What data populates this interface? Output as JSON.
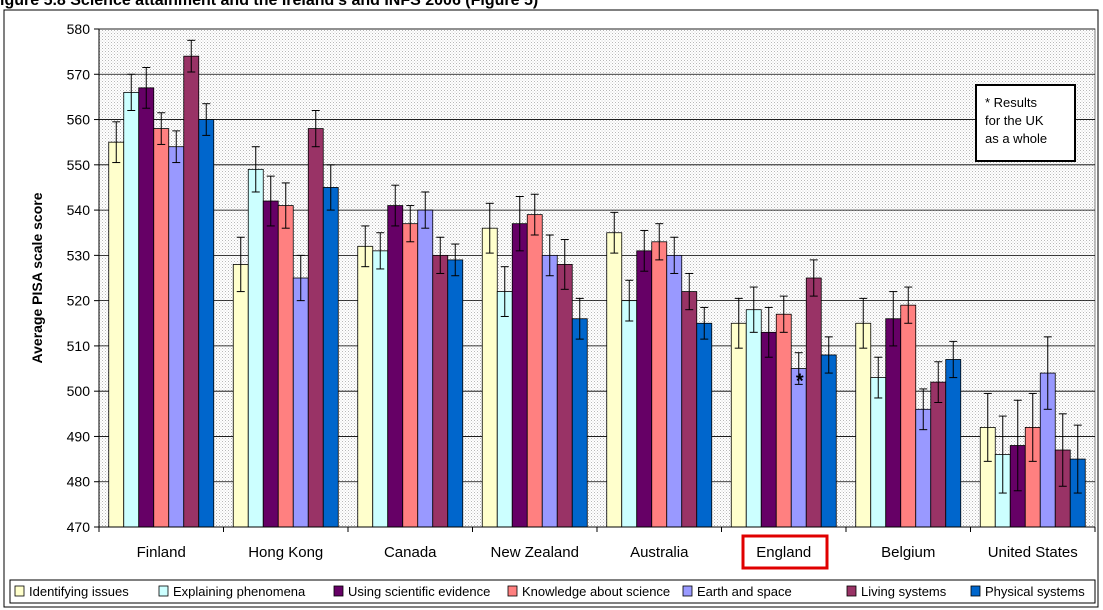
{
  "figure_title": "igure 5.8 Science attainment and the Ireland's and INFS 2006 (Figure 5)",
  "chart_data": {
    "type": "bar",
    "ylabel": "Average PISA scale score",
    "xlabel": "",
    "ylim": [
      470,
      580
    ],
    "yticks": [
      470,
      480,
      490,
      500,
      510,
      520,
      530,
      540,
      550,
      560,
      570,
      580
    ],
    "grid": true,
    "legend_position": "bottom",
    "note": "* Results for the UK as a whole",
    "highlighted_category": "England",
    "asterisk_marker": "*",
    "categories": [
      "Finland",
      "Hong Kong",
      "Canada",
      "New Zealand",
      "Australia",
      "England",
      "Belgium",
      "United States"
    ],
    "series": [
      {
        "name": "Identifying issues",
        "color": "#FFFFCC",
        "values": [
          555,
          528,
          532,
          536,
          535,
          515,
          515,
          492
        ],
        "errors": [
          4.5,
          6,
          4.5,
          5.5,
          4.5,
          5.5,
          5.5,
          7.5
        ]
      },
      {
        "name": "Explaining phenomena",
        "color": "#CCFFFF",
        "values": [
          566,
          549,
          531,
          522,
          520,
          518,
          503,
          486
        ],
        "errors": [
          4,
          5,
          4,
          5.5,
          4.5,
          5,
          4.5,
          8.5
        ]
      },
      {
        "name": "Using scientific evidence",
        "color": "#660066",
        "values": [
          567,
          542,
          541,
          537,
          531,
          513,
          516,
          488
        ],
        "errors": [
          4.5,
          5.5,
          4.5,
          6,
          4.5,
          5.5,
          6,
          10
        ]
      },
      {
        "name": "Knowledge about science",
        "color": "#FF8080",
        "values": [
          558,
          541,
          537,
          539,
          533,
          517,
          519,
          492
        ],
        "errors": [
          3.5,
          5,
          4,
          4.5,
          4,
          4,
          4,
          7.5
        ]
      },
      {
        "name": "Earth and space",
        "color": "#9999FF",
        "values": [
          554,
          525,
          540,
          530,
          530,
          505,
          496,
          504
        ],
        "errors": [
          3.5,
          5,
          4,
          4.5,
          4,
          3.5,
          4.5,
          8
        ]
      },
      {
        "name": "Living systems",
        "color": "#993366",
        "values": [
          574,
          558,
          530,
          528,
          522,
          525,
          502,
          487
        ],
        "errors": [
          3.5,
          4,
          4,
          5.5,
          4,
          4,
          4.5,
          8
        ]
      },
      {
        "name": "Physical systems",
        "color": "#0066CC",
        "values": [
          560,
          545,
          529,
          516,
          515,
          508,
          507,
          485
        ],
        "errors": [
          3.5,
          5,
          3.5,
          4.5,
          3.5,
          4,
          4,
          7.5
        ]
      }
    ]
  }
}
